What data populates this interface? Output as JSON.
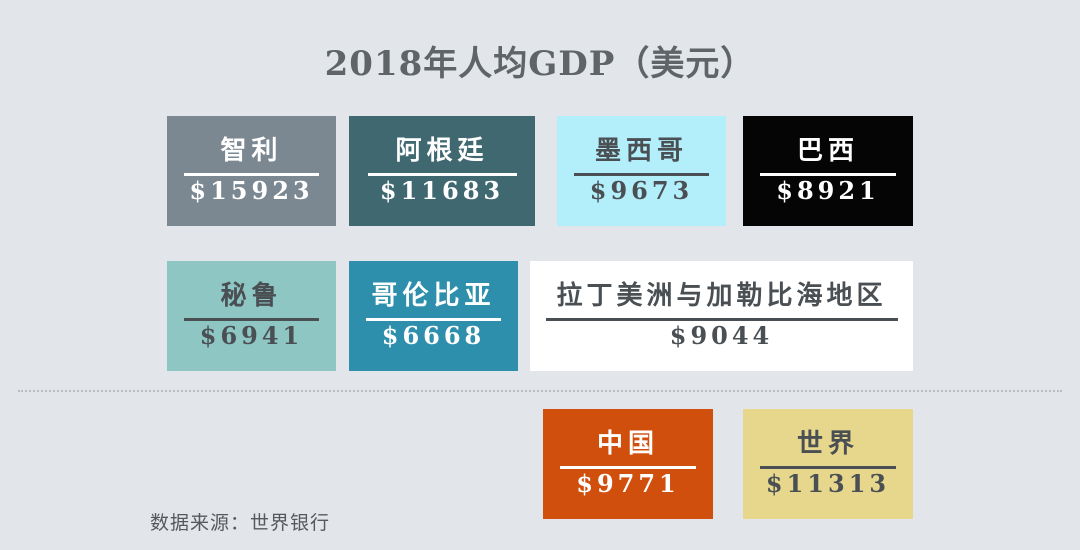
{
  "chart_data": {
    "type": "table",
    "title": "2018年人均GDP（美元）",
    "source": "数据来源：世界银行",
    "unit_prefix": "$",
    "items": [
      {
        "name": "智利",
        "value": 15923,
        "label": "$15923",
        "color": "#7b8892",
        "text_color": "#ffffff",
        "rule_color": "#ffffff"
      },
      {
        "name": "阿根廷",
        "value": 11683,
        "label": "$11683",
        "color": "#3f6870",
        "text_color": "#ffffff",
        "rule_color": "#ffffff"
      },
      {
        "name": "墨西哥",
        "value": 9673,
        "label": "$9673",
        "color": "#b3eefb",
        "text_color": "#4a4f53",
        "rule_color": "#4a4f53"
      },
      {
        "name": "巴西",
        "value": 8921,
        "label": "$8921",
        "color": "#050505",
        "text_color": "#ffffff",
        "rule_color": "#ffffff"
      },
      {
        "name": "秘鲁",
        "value": 6941,
        "label": "$6941",
        "color": "#8ec6c3",
        "text_color": "#4a4f53",
        "rule_color": "#4a4f53"
      },
      {
        "name": "哥伦比亚",
        "value": 6668,
        "label": "$6668",
        "color": "#2e8fac",
        "text_color": "#ffffff",
        "rule_color": "#ffffff"
      },
      {
        "name": "拉丁美洲与加勒比海地区",
        "value": 9044,
        "label": "$9044",
        "color": "#ffffff",
        "text_color": "#4a4f53",
        "rule_color": "#4a4f53"
      },
      {
        "name": "中国",
        "value": 9771,
        "label": "$9771",
        "color": "#d14f0d",
        "text_color": "#ffffff",
        "rule_color": "#ffffff"
      },
      {
        "name": "世界",
        "value": 11313,
        "label": "$11313",
        "color": "#e7d78d",
        "text_color": "#4a4f53",
        "rule_color": "#4a4f53"
      }
    ]
  }
}
